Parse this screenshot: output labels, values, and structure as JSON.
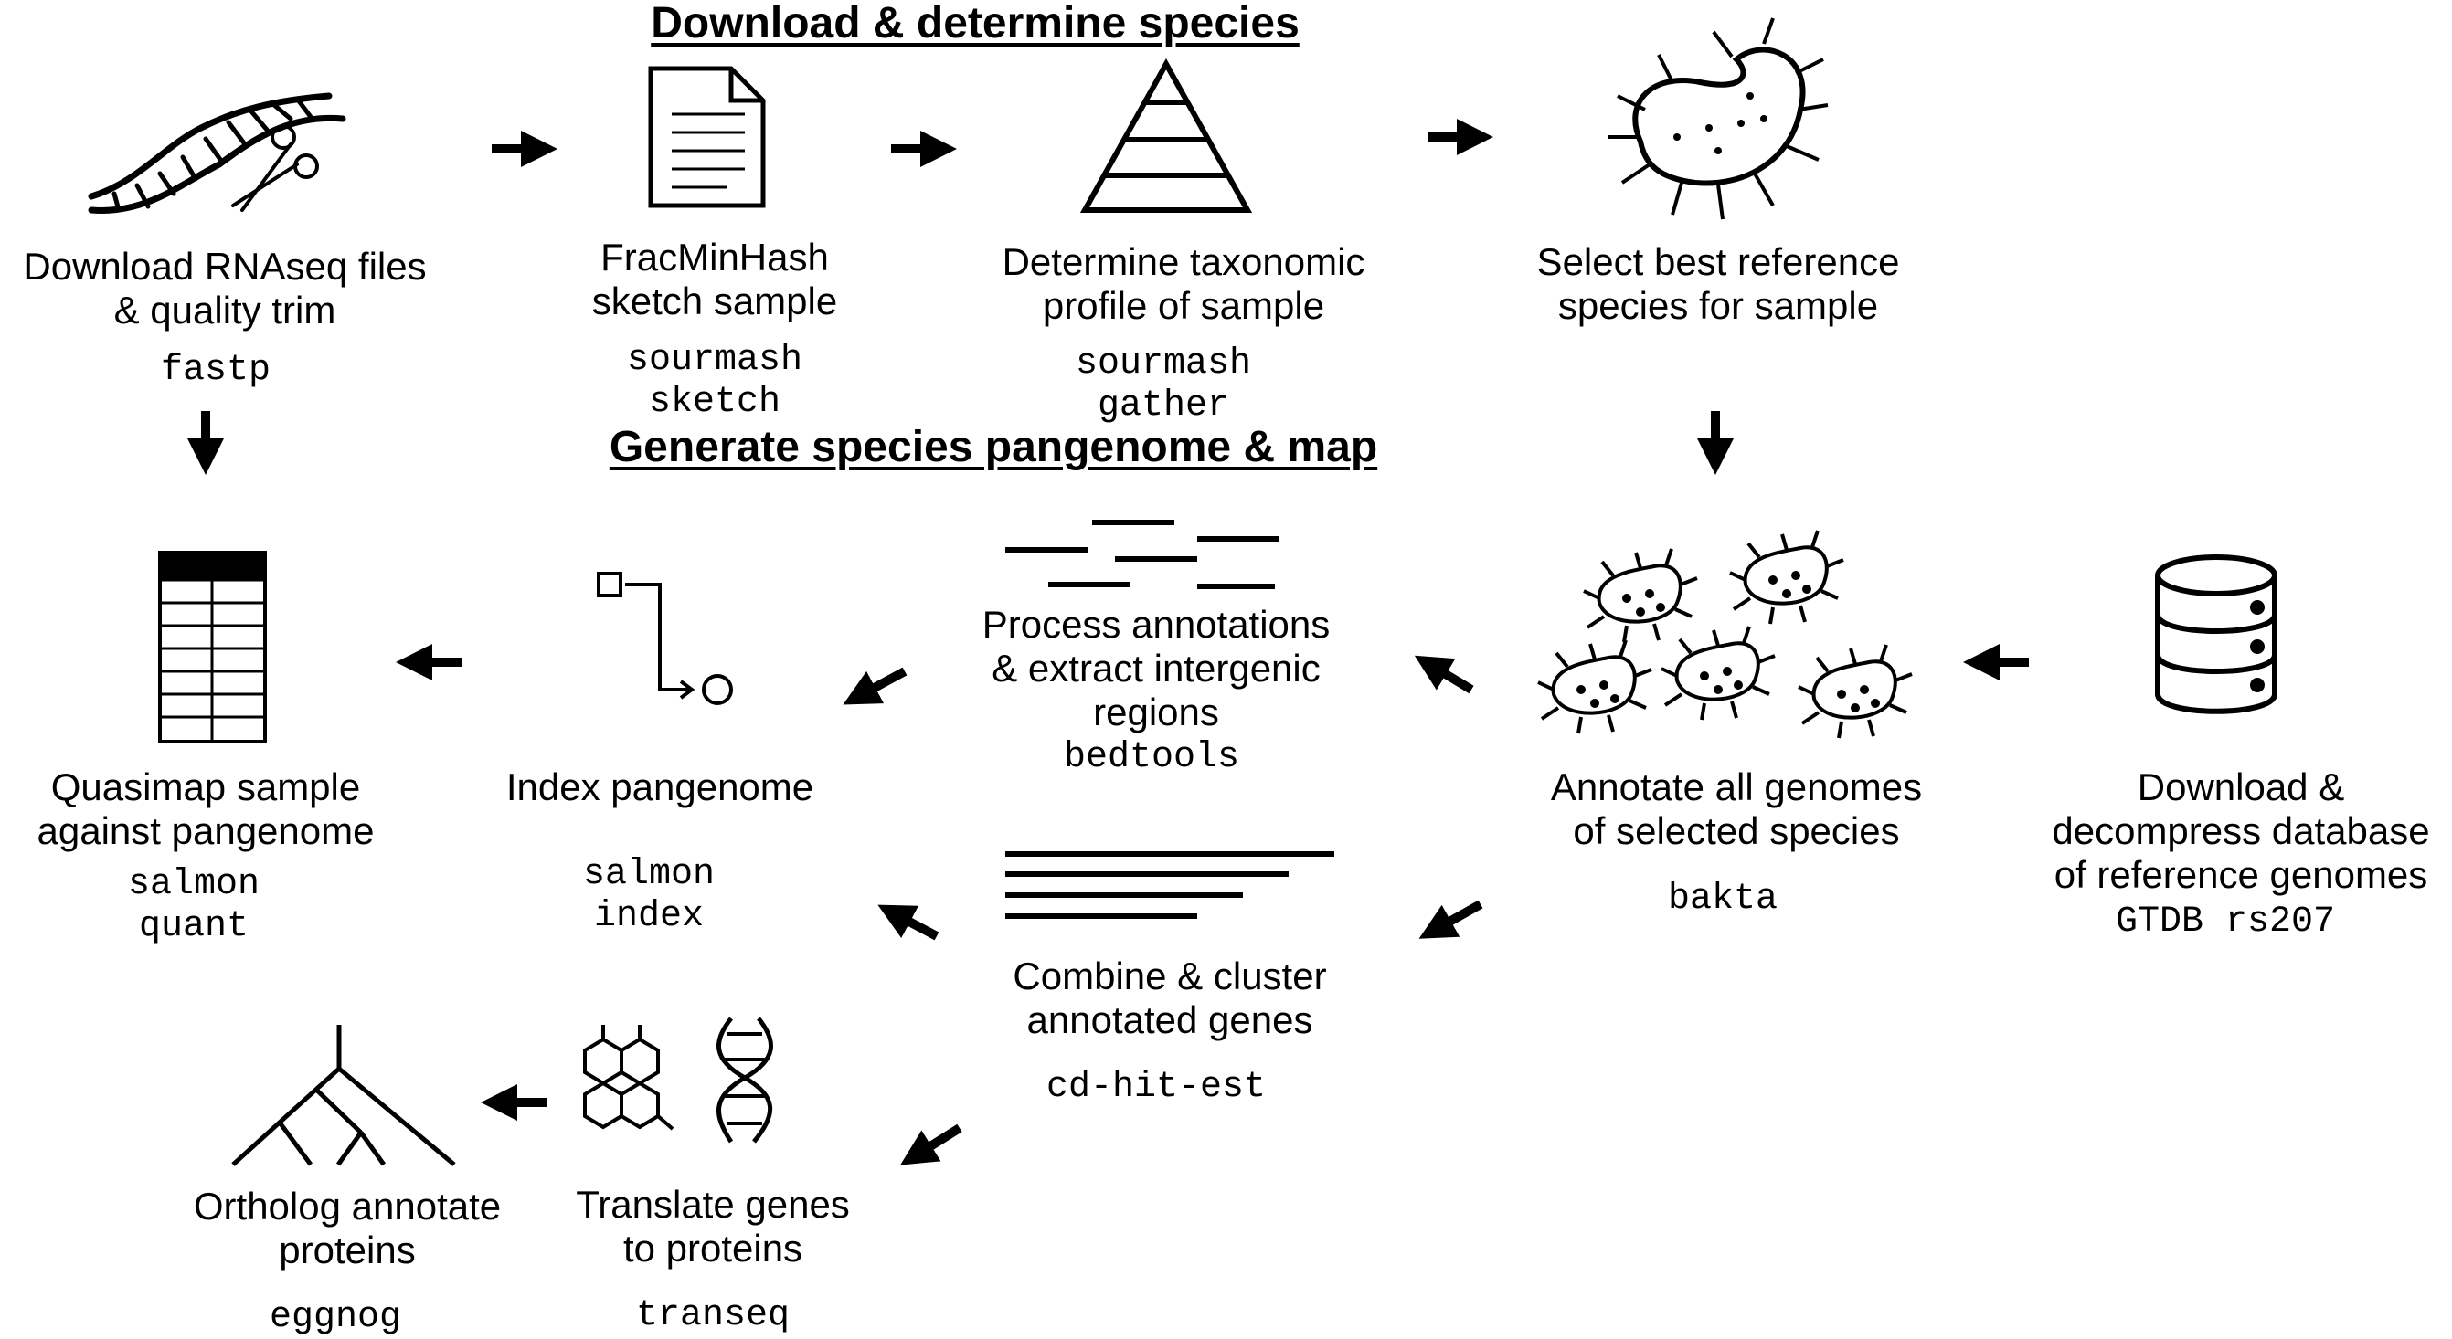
{
  "headings": {
    "download": "Download & determine species",
    "generate": "Generate species pangenome & map"
  },
  "steps": {
    "download": {
      "label": [
        "Download RNAseq files",
        "& quality trim"
      ],
      "tool": [
        "fastp"
      ],
      "icon": "dna-scissors-icon"
    },
    "sketch": {
      "label": [
        "FracMinHash",
        "sketch sample"
      ],
      "tool": [
        "sourmash",
        "sketch"
      ],
      "icon": "document-icon"
    },
    "taxonomy": {
      "label": [
        "Determine taxonomic",
        "profile of sample"
      ],
      "tool": [
        "sourmash",
        "gather"
      ],
      "icon": "pyramid-icon"
    },
    "select": {
      "label": [
        "Select best reference",
        "species for sample"
      ],
      "tool": [],
      "icon": "bacterium-icon"
    },
    "database": {
      "label": [
        "Download &",
        "decompress database",
        "of reference genomes"
      ],
      "tool": [
        "GTDB rs207"
      ],
      "icon": "database-icon"
    },
    "annotate": {
      "label": [
        "Annotate all genomes",
        "of selected species"
      ],
      "tool": [
        "bakta"
      ],
      "icon": "bacteria-group-icon"
    },
    "process": {
      "label": [
        "Process annotations",
        "& extract intergenic",
        "regions"
      ],
      "tool": [
        "bedtools"
      ],
      "icon": "intervals-icon"
    },
    "combine": {
      "label": [
        "Combine & cluster",
        "annotated genes"
      ],
      "tool": [
        "cd-hit-est"
      ],
      "icon": "aligned-lines-icon"
    },
    "index": {
      "label": [
        "Index pangenome"
      ],
      "tool": [
        "salmon",
        "index"
      ],
      "icon": "index-graph-icon"
    },
    "quasimap": {
      "label": [
        "Quasimap sample",
        "against pangenome"
      ],
      "tool": [
        "salmon",
        "quant"
      ],
      "icon": "table-icon"
    },
    "translate": {
      "label": [
        "Translate genes",
        "to proteins"
      ],
      "tool": [
        "transeq"
      ],
      "icon": "molecule-dna-icon"
    },
    "ortholog": {
      "label": [
        "Ortholog annotate",
        "proteins"
      ],
      "tool": [
        "eggnog"
      ],
      "icon": "tree-icon"
    }
  }
}
